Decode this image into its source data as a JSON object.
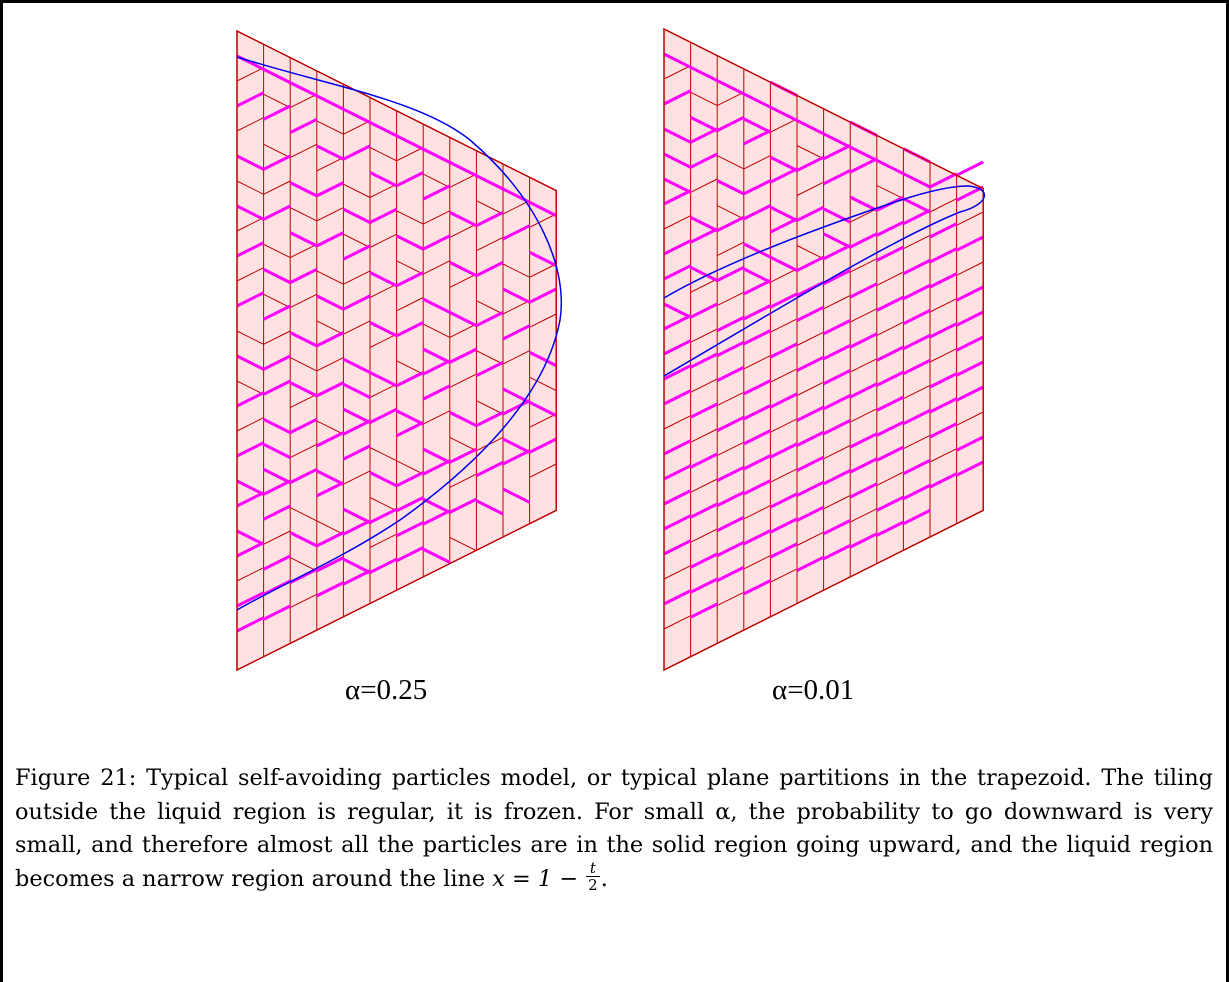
{
  "figure": {
    "panels": [
      {
        "label": "α=0.25",
        "alpha": 0.25
      },
      {
        "label": "α=0.01",
        "alpha": 0.01
      }
    ],
    "colors": {
      "tile_fill": "#ffe1e1",
      "tile_edge": "#c00000",
      "particle_path": "#ff00ff",
      "liquid_boundary": "#0000ee"
    }
  },
  "caption": {
    "label": "Figure 21:",
    "text": "Typical self-avoiding particles model, or typical plane partitions in the trapezoid. The tiling outside the liquid region is regular, it is frozen. For small α, the probability to go downward is very small, and therefore almost all the particles are in the solid region going upward, and the liquid region becomes a narrow region around the line",
    "equation": {
      "lhs": "x = 1 −",
      "frac_num": "t",
      "frac_den": "2",
      "end": "."
    }
  }
}
